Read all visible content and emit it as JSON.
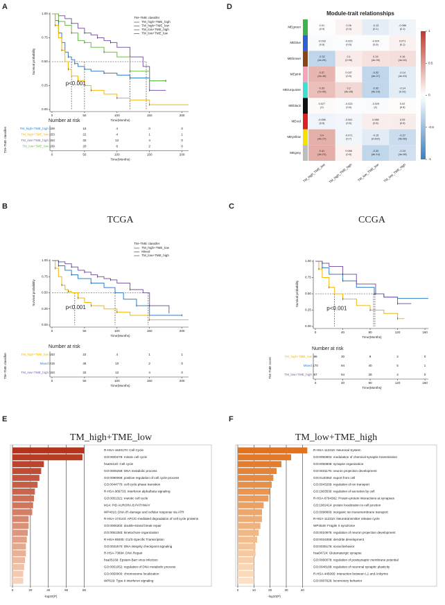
{
  "chart_data": [
    {
      "panel": "A",
      "type": "km",
      "legend_title": "TM−TME classifer",
      "legend": "upper right",
      "ylabel": "Survival probability",
      "xlabel": "Time(Months)",
      "xlim": [
        0,
        210
      ],
      "ylim": [
        0,
        1
      ],
      "xticks": [
        0,
        50,
        100,
        150,
        200
      ],
      "yticks": [
        {
          "value": 0,
          "label": "0.00"
        },
        {
          "value": 0.25,
          "label": "0.25"
        },
        {
          "value": 0.5,
          "label": "0.50"
        },
        {
          "value": 0.75,
          "label": "0.75"
        },
        {
          "value": 1,
          "label": "1.00"
        }
      ],
      "series": [
        {
          "name": "TM_high+TME_high",
          "color": "#2f7dc9",
          "x": [
            0,
            5,
            10,
            15,
            20,
            25,
            30,
            35,
            40,
            50,
            60,
            80,
            100,
            120,
            150,
            175
          ],
          "values": [
            1,
            0.93,
            0.8,
            0.7,
            0.6,
            0.55,
            0.52,
            0.48,
            0.45,
            0.42,
            0.4,
            0.38,
            0.36,
            0.33,
            0.3,
            0.3
          ]
        },
        {
          "name": "TM_high+TME_low",
          "color": "#f2b705",
          "x": [
            0,
            5,
            10,
            15,
            20,
            25,
            30,
            40,
            50,
            60,
            80,
            100,
            120,
            150,
            210
          ],
          "values": [
            1,
            0.88,
            0.75,
            0.62,
            0.5,
            0.42,
            0.35,
            0.3,
            0.25,
            0.2,
            0.16,
            0.12,
            0.1,
            0.05,
            0.05
          ]
        },
        {
          "name": "TM_low+TME_high",
          "color": "#7b5aa6",
          "x": [
            0,
            10,
            20,
            30,
            40,
            50,
            60,
            70,
            80,
            90,
            100,
            120,
            140,
            150,
            175
          ],
          "values": [
            1,
            0.98,
            0.95,
            0.9,
            0.85,
            0.8,
            0.78,
            0.75,
            0.72,
            0.7,
            0.65,
            0.55,
            0.45,
            0.2,
            0.2
          ]
        },
        {
          "name": "TM_low+TME_low",
          "color": "#6abd45",
          "x": [
            0,
            10,
            20,
            30,
            40,
            50,
            60,
            80,
            100,
            120,
            150,
            175
          ],
          "values": [
            1,
            0.92,
            0.88,
            0.8,
            0.72,
            0.7,
            0.65,
            0.6,
            0.55,
            0.4,
            0.3,
            0.3
          ]
        }
      ],
      "median_level": 0.5,
      "medians": [
        30,
        50,
        120,
        145
      ],
      "annotation": "p<0.001",
      "risk": {
        "title": "Number at risk",
        "ylabel": "TM−TME classifier",
        "rows": [
          {
            "name": "TM_high+TME_high",
            "color": "#2f7dc9",
            "values": [
              109,
              16,
              4,
              0,
              0
            ]
          },
          {
            "name": "TM_high+TME_low",
            "color": "#f2b705",
            "values": [
              153,
              22,
              4,
              1,
              1
            ]
          },
          {
            "name": "TM_low+TME_high",
            "color": "#7b5aa6",
            "values": [
              153,
              32,
              12,
              4,
              0
            ]
          },
          {
            "name": "TM_low+TME_low",
            "color": "#6abd45",
            "values": [
              109,
              20,
              6,
              2,
              0
            ]
          }
        ]
      }
    },
    {
      "panel": "D",
      "type": "heatmap",
      "title": "Module-trait relationships",
      "rows": [
        "MEgreen",
        "MEblue",
        "MEbrown",
        "MEpink",
        "MEturquoise",
        "MEblack",
        "MEred",
        "MEyellow",
        "MEgrey"
      ],
      "row_colors": [
        "#3cb44b",
        "#2f5fd0",
        "#8b4513",
        "#f4a3b8",
        "#40e0d0",
        "#111111",
        "#e02020",
        "#f5e000",
        "#bdbdbd"
      ],
      "columns": [
        "TM_high_TME_low",
        "TM_high_TME_high",
        "TM_low_TME_low",
        "TM_low_TME_high"
      ],
      "values": [
        [
          0.01,
          0.06,
          -0.13,
          -0.086
        ],
        [
          -0.028,
          -0.023,
          -0.024,
          0.071
        ],
        [
          -0.32,
          0.1,
          0.15,
          0.16
        ],
        [
          0.37,
          0.037,
          -0.32,
          -0.14
        ],
        [
          0.33,
          0.2,
          -0.32,
          -0.14
        ],
        [
          0.027,
          -0.023,
          -0.029,
          0.02
        ],
        [
          -0.086,
          -0.061,
          0.086,
          0.09
        ],
        [
          0.4,
          -0.071,
          -0.15,
          -0.27
        ],
        [
          0.41,
          0.066,
          -0.32,
          -0.24
        ]
      ],
      "p_labels": [
        [
          "(0.9)",
          "(0.3)",
          "(0.1)",
          "(0.1)"
        ],
        [
          "(0.6)",
          "(0.6)",
          "(0.6)",
          "(0.1)"
        ],
        [
          "(4e-09)",
          "(0.06)",
          "(4e-05)",
          "(4e-04)"
        ],
        [
          "(4e-16)",
          "(0.5)",
          "(4e-07)",
          "(4e-03)"
        ],
        [
          "(7e-09)",
          "(4e-05)",
          "(4e-14)",
          "(0.02)"
        ],
        [
          "(1)",
          "(0.6)",
          "(1)",
          "(0.6)"
        ],
        [
          "(0.5)",
          "(0.5)",
          "(0.5)",
          "(0.5)"
        ],
        [
          "(4e-17)",
          "(0.7)",
          "(0.002)",
          "(4e-08)"
        ],
        [
          "(4e-21)",
          "(0.6)",
          "(4e-14)",
          "(4e-08)"
        ]
      ],
      "zlim": [
        -1,
        1
      ],
      "zticks": [
        1,
        0.5,
        0,
        -0.5,
        -1
      ],
      "colorscale": [
        "#3a7fc1",
        "#ffffff",
        "#c0392b"
      ]
    },
    {
      "panel": "B",
      "type": "km",
      "title": "TCGA",
      "legend_title": "TM−TME classifer",
      "legend": "above right",
      "ylabel": "Survival probability",
      "xlabel": "Time(Months)",
      "xlim": [
        0,
        210
      ],
      "ylim": [
        0,
        1
      ],
      "xticks": [
        0,
        50,
        100,
        150,
        200
      ],
      "yticks": [
        {
          "value": 0,
          "label": "0.00"
        },
        {
          "value": 0.25,
          "label": "0.25"
        },
        {
          "value": 0.5,
          "label": "0.50"
        },
        {
          "value": 0.75,
          "label": "0.75"
        },
        {
          "value": 1,
          "label": "1.00"
        }
      ],
      "series": [
        {
          "name": "TM_high+TME_low",
          "color": "#f2b705",
          "x": [
            0,
            5,
            10,
            15,
            20,
            25,
            30,
            40,
            50,
            60,
            80,
            100,
            120,
            150,
            210
          ],
          "values": [
            1,
            0.88,
            0.75,
            0.62,
            0.55,
            0.52,
            0.5,
            0.42,
            0.35,
            0.3,
            0.25,
            0.2,
            0.15,
            0.08,
            0.08
          ]
        },
        {
          "name": "Mixed",
          "color": "#2f7dc9",
          "x": [
            0,
            10,
            20,
            30,
            40,
            60,
            80,
            97,
            110,
            130,
            150,
            200
          ],
          "values": [
            1,
            0.92,
            0.85,
            0.78,
            0.72,
            0.65,
            0.58,
            0.5,
            0.4,
            0.3,
            0.15,
            0.15
          ]
        },
        {
          "name": "TM_low+TME_high",
          "color": "#7b5aa6",
          "x": [
            0,
            10,
            20,
            30,
            40,
            50,
            60,
            70,
            80,
            90,
            100,
            120,
            140,
            150,
            180
          ],
          "values": [
            1,
            0.98,
            0.95,
            0.9,
            0.85,
            0.82,
            0.78,
            0.75,
            0.72,
            0.7,
            0.65,
            0.55,
            0.5,
            0.3,
            0.18
          ]
        }
      ],
      "median_level": 0.5,
      "medians": [
        35,
        97,
        148
      ],
      "annotation": "p<0.001",
      "risk": {
        "title": "Number at risk",
        "ylabel": "TM−TME classifier",
        "rows": [
          {
            "name": "TM_high+TME_low",
            "color": "#f2b705",
            "values": [
              153,
              22,
              4,
              1,
              1
            ]
          },
          {
            "name": "Mixed",
            "color": "#2f7dc9",
            "values": [
              218,
              36,
              10,
              2,
              0
            ]
          },
          {
            "name": "TM_low+TME_high",
            "color": "#7b5aa6",
            "values": [
              153,
              32,
              12,
              4,
              0
            ]
          }
        ]
      }
    },
    {
      "panel": "C",
      "type": "km",
      "title": "CCGA",
      "ylabel": "Survival probability",
      "xlabel": "Time(Months)",
      "xlim": [
        0,
        165
      ],
      "ylim": [
        0,
        1
      ],
      "xticks": [
        0,
        40,
        80,
        120,
        160
      ],
      "yticks": [
        {
          "value": 0,
          "label": "0.00"
        },
        {
          "value": 0.25,
          "label": "0.25"
        },
        {
          "value": 0.5,
          "label": "0.50"
        },
        {
          "value": 0.75,
          "label": "0.75"
        },
        {
          "value": 1,
          "label": "1.00"
        }
      ],
      "series": [
        {
          "name": "TM_high+TME_low",
          "color": "#f2b705",
          "x": [
            0,
            5,
            10,
            20,
            28,
            40,
            60,
            80,
            100,
            120,
            130
          ],
          "values": [
            1,
            0.88,
            0.75,
            0.6,
            0.5,
            0.42,
            0.32,
            0.25,
            0.2,
            0.12,
            0.12
          ]
        },
        {
          "name": "Mixed",
          "color": "#2f7dc9",
          "x": [
            0,
            10,
            20,
            40,
            60,
            86,
            100,
            120,
            165
          ],
          "values": [
            1,
            0.9,
            0.8,
            0.7,
            0.6,
            0.5,
            0.45,
            0.43,
            0.43
          ]
        },
        {
          "name": "TM_low+TME_high",
          "color": "#7b5aa6",
          "x": [
            0,
            10,
            20,
            40,
            60,
            88,
            100,
            120,
            140
          ],
          "values": [
            1,
            0.97,
            0.92,
            0.8,
            0.65,
            0.5,
            0.45,
            0.35,
            0.35
          ]
        }
      ],
      "median_level": 0.5,
      "medians": [
        28,
        85,
        87
      ],
      "annotation": "p<0.001",
      "risk": {
        "title": "Number at risk",
        "ylabel": "TM−TME score",
        "rows": [
          {
            "name": "TM_high+TME_low",
            "color": "#f2b705",
            "values": [
              86,
              30,
              8,
              2,
              0
            ]
          },
          {
            "name": "Mixed",
            "color": "#2f7dc9",
            "values": [
              170,
              94,
              40,
              5,
              1
            ]
          },
          {
            "name": "TM_low+TME_high",
            "color": "#7b5aa6",
            "values": [
              87,
              64,
              28,
              4,
              0
            ]
          }
        ]
      }
    },
    {
      "panel": "E",
      "type": "barh",
      "title": "TM_high+TME_low",
      "xlabel": "-log10(P)",
      "xlim": [
        0,
        85
      ],
      "xticks": [
        0,
        20,
        40,
        60,
        80
      ],
      "color_range": [
        "#b5331c",
        "#f6d2b8"
      ],
      "labels": [
        "R-HSA-1640170: Cell Cycle",
        "GO:0000278: mitotic cell cycle",
        "hsa04110: Cell cycle",
        "GO:0006259: DNA metabolic process",
        "GO:0090068: positive regulation of cell cycle process",
        "GO:0044770: cell cycle phase transition",
        "R-HSA-909733: Interferon alpha/beta signaling",
        "GO:0051321: meiotic cell cycle",
        "M14: PID AURORA B PATHWAY",
        "WP4016: DNA IR-damage and cellular response via ATR",
        "R-HSA-174143: APC/C-mediated degradation of cell cycle proteins",
        "GO:0006302: double-strand break repair",
        "GO:0051383: kinetochore organization",
        "R-HSA-69205: G1/S-Specific Transcription",
        "GO:0031570: DNA integrity checkpoint signaling",
        "R-HSA-73894: DNA Repair",
        "hsa05169: Epstein-Barr virus infection",
        "GO:0051052: regulation of DNA metabolic process",
        "GO:0050000: chromosome localization",
        "WP619: Type II interferon signaling"
      ],
      "values": [
        80,
        78,
        35,
        32,
        30,
        28,
        25,
        24,
        23,
        22,
        18,
        18,
        17,
        16,
        15,
        15,
        14,
        13,
        12,
        12
      ]
    },
    {
      "panel": "F",
      "type": "barh",
      "title": "TM_low+TME_high",
      "xlabel": "-log10(P)",
      "xlim": [
        0,
        45
      ],
      "xticks": [
        0,
        10,
        20,
        30,
        40
      ],
      "color_range": [
        "#e0731f",
        "#fbe0c4"
      ],
      "labels": [
        "R-HSA-112316: Neuronal System",
        "GO:0050804: modulation of chemical synaptic transmission",
        "GO:0050808: synapse organization",
        "GO:0031175: neuron projection development",
        "GO:0140352: export from cell",
        "GO:0043269: regulation of ion transport",
        "GO:1903530: regulation of secretion by cell",
        "R-HSA-6794362: Protein-protein interactions at synapses",
        "GO:1902414: protein localization to cell junction",
        "GO:0098660: inorganic ion transmembrane transport",
        "R-HSA-112310: Neurotransmitter release cycle",
        "WP4549: Fragile X syndrome",
        "GO:0010975: regulation of neuron projection development",
        "GO:0016358: dendrite development",
        "GO:0035176: social behavior",
        "hsa04724: Glutamatergic synapse",
        "GO:0060078: regulation of postsynaptic membrane potential",
        "GO:0048168: regulation of neuronal synaptic plasticity",
        "R-HSA-445095: Interaction between L1 and Ankyrins",
        "GO:0007626: locomotory behavior"
      ],
      "values": [
        43,
        33,
        27,
        24,
        22,
        21,
        20,
        19,
        16,
        15,
        15,
        14,
        13,
        12,
        11,
        11,
        10,
        10,
        10,
        10
      ]
    }
  ]
}
